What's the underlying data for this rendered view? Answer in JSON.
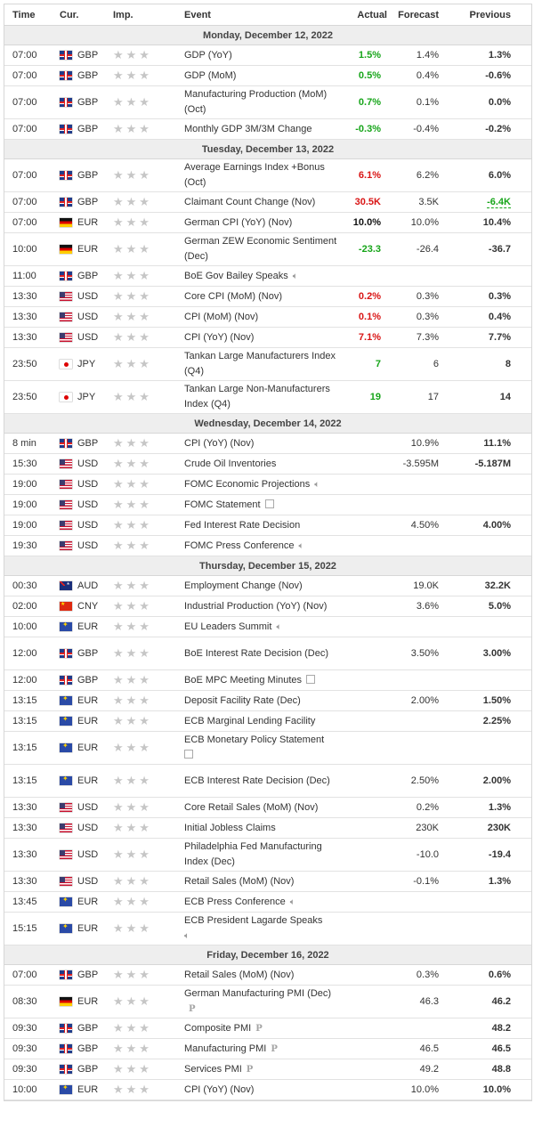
{
  "headers": {
    "time": "Time",
    "cur": "Cur.",
    "imp": "Imp.",
    "event": "Event",
    "actual": "Actual",
    "forecast": "Forecast",
    "previous": "Previous"
  },
  "days": [
    {
      "label": "Monday, December 12, 2022",
      "rows": [
        {
          "time": "07:00",
          "flag": "GBP",
          "cur": "GBP",
          "event": "GDP (YoY)",
          "actual": "1.5%",
          "actual_color": "green",
          "forecast": "1.4%",
          "previous": "1.3%"
        },
        {
          "time": "07:00",
          "flag": "GBP",
          "cur": "GBP",
          "event": "GDP (MoM)",
          "actual": "0.5%",
          "actual_color": "green",
          "forecast": "0.4%",
          "previous": "-0.6%"
        },
        {
          "time": "07:00",
          "flag": "GBP",
          "cur": "GBP",
          "event": "Manufacturing Production (MoM) (Oct)",
          "actual": "0.7%",
          "actual_color": "green",
          "forecast": "0.1%",
          "previous": "0.0%",
          "tall": true
        },
        {
          "time": "07:00",
          "flag": "GBP",
          "cur": "GBP",
          "event": "Monthly GDP 3M/3M Change",
          "actual": "-0.3%",
          "actual_color": "green",
          "forecast": "-0.4%",
          "previous": "-0.2%"
        }
      ]
    },
    {
      "label": "Tuesday, December 13, 2022",
      "rows": [
        {
          "time": "07:00",
          "flag": "GBP",
          "cur": "GBP",
          "event": "Average Earnings Index +Bonus (Oct)",
          "actual": "6.1%",
          "actual_color": "red",
          "forecast": "6.2%",
          "previous": "6.0%",
          "tall": true
        },
        {
          "time": "07:00",
          "flag": "GBP",
          "cur": "GBP",
          "event": "Claimant Count Change (Nov)",
          "actual": "30.5K",
          "actual_color": "red",
          "forecast": "3.5K",
          "previous": "-6.4K",
          "previous_color": "green",
          "previous_revised": true
        },
        {
          "time": "07:00",
          "flag": "DEU",
          "cur": "EUR",
          "event": "German CPI (YoY) (Nov)",
          "actual": "10.0%",
          "actual_color": "black",
          "forecast": "10.0%",
          "previous": "10.4%"
        },
        {
          "time": "10:00",
          "flag": "DEU",
          "cur": "EUR",
          "event": "German ZEW Economic Sentiment (Dec)",
          "actual": "-23.3",
          "actual_color": "green",
          "forecast": "-26.4",
          "previous": "-36.7",
          "tall": true
        },
        {
          "time": "11:00",
          "flag": "GBP",
          "cur": "GBP",
          "event": "BoE Gov Bailey Speaks",
          "icon": "speaker-icon",
          "actual": "",
          "forecast": "",
          "previous": ""
        },
        {
          "time": "13:30",
          "flag": "USD",
          "cur": "USD",
          "event": "Core CPI (MoM) (Nov)",
          "actual": "0.2%",
          "actual_color": "red",
          "forecast": "0.3%",
          "previous": "0.3%"
        },
        {
          "time": "13:30",
          "flag": "USD",
          "cur": "USD",
          "event": "CPI (MoM) (Nov)",
          "actual": "0.1%",
          "actual_color": "red",
          "forecast": "0.3%",
          "previous": "0.4%"
        },
        {
          "time": "13:30",
          "flag": "USD",
          "cur": "USD",
          "event": "CPI (YoY) (Nov)",
          "actual": "7.1%",
          "actual_color": "red",
          "forecast": "7.3%",
          "previous": "7.7%"
        },
        {
          "time": "23:50",
          "flag": "JPY",
          "cur": "JPY",
          "event": "Tankan Large Manufacturers Index (Q4)",
          "actual": "7",
          "actual_color": "green",
          "forecast": "6",
          "previous": "8",
          "tall": true
        },
        {
          "time": "23:50",
          "flag": "JPY",
          "cur": "JPY",
          "event": "Tankan Large Non-Manufacturers Index (Q4)",
          "actual": "19",
          "actual_color": "green",
          "forecast": "17",
          "previous": "14",
          "tall": true
        }
      ]
    },
    {
      "label": "Wednesday, December 14, 2022",
      "rows": [
        {
          "time": "8 min",
          "flag": "GBP",
          "cur": "GBP",
          "event": "CPI (YoY) (Nov)",
          "actual": "",
          "forecast": "10.9%",
          "previous": "11.1%"
        },
        {
          "time": "15:30",
          "flag": "USD",
          "cur": "USD",
          "event": "Crude Oil Inventories",
          "actual": "",
          "forecast": "-3.595M",
          "previous": "-5.187M"
        },
        {
          "time": "19:00",
          "flag": "USD",
          "cur": "USD",
          "event": "FOMC Economic Projections",
          "icon": "speaker-icon",
          "actual": "",
          "forecast": "",
          "previous": ""
        },
        {
          "time": "19:00",
          "flag": "USD",
          "cur": "USD",
          "event": "FOMC Statement",
          "icon": "document-icon",
          "actual": "",
          "forecast": "",
          "previous": ""
        },
        {
          "time": "19:00",
          "flag": "USD",
          "cur": "USD",
          "event": "Fed Interest Rate Decision",
          "actual": "",
          "forecast": "4.50%",
          "previous": "4.00%"
        },
        {
          "time": "19:30",
          "flag": "USD",
          "cur": "USD",
          "event": "FOMC Press Conference",
          "icon": "speaker-icon",
          "actual": "",
          "forecast": "",
          "previous": ""
        }
      ]
    },
    {
      "label": "Thursday, December 15, 2022",
      "rows": [
        {
          "time": "00:30",
          "flag": "AUD",
          "cur": "AUD",
          "event": "Employment Change (Nov)",
          "actual": "",
          "forecast": "19.0K",
          "previous": "32.2K"
        },
        {
          "time": "02:00",
          "flag": "CNY",
          "cur": "CNY",
          "event": "Industrial Production (YoY) (Nov)",
          "actual": "",
          "forecast": "3.6%",
          "previous": "5.0%"
        },
        {
          "time": "10:00",
          "flag": "EUR",
          "cur": "EUR",
          "event": "EU Leaders Summit",
          "icon": "speaker-icon",
          "actual": "",
          "forecast": "",
          "previous": ""
        },
        {
          "time": "12:00",
          "flag": "GBP",
          "cur": "GBP",
          "event": "BoE Interest Rate Decision (Dec)",
          "actual": "",
          "forecast": "3.50%",
          "previous": "3.00%",
          "tall": true
        },
        {
          "time": "12:00",
          "flag": "GBP",
          "cur": "GBP",
          "event": "BoE MPC Meeting Minutes",
          "icon": "document-icon",
          "actual": "",
          "forecast": "",
          "previous": ""
        },
        {
          "time": "13:15",
          "flag": "EUR",
          "cur": "EUR",
          "event": "Deposit Facility Rate (Dec)",
          "actual": "",
          "forecast": "2.00%",
          "previous": "1.50%"
        },
        {
          "time": "13:15",
          "flag": "EUR",
          "cur": "EUR",
          "event": "ECB Marginal Lending Facility",
          "actual": "",
          "forecast": "",
          "previous": "2.25%"
        },
        {
          "time": "13:15",
          "flag": "EUR",
          "cur": "EUR",
          "event": "ECB Monetary Policy Statement",
          "icon": "document-icon",
          "icon_newline": true,
          "actual": "",
          "forecast": "",
          "previous": "",
          "tall": true
        },
        {
          "time": "13:15",
          "flag": "EUR",
          "cur": "EUR",
          "event": "ECB Interest Rate Decision (Dec)",
          "actual": "",
          "forecast": "2.50%",
          "previous": "2.00%",
          "tall": true
        },
        {
          "time": "13:30",
          "flag": "USD",
          "cur": "USD",
          "event": "Core Retail Sales (MoM) (Nov)",
          "actual": "",
          "forecast": "0.2%",
          "previous": "1.3%"
        },
        {
          "time": "13:30",
          "flag": "USD",
          "cur": "USD",
          "event": "Initial Jobless Claims",
          "actual": "",
          "forecast": "230K",
          "previous": "230K"
        },
        {
          "time": "13:30",
          "flag": "USD",
          "cur": "USD",
          "event": "Philadelphia Fed Manufacturing Index (Dec)",
          "actual": "",
          "forecast": "-10.0",
          "previous": "-19.4",
          "tall": true
        },
        {
          "time": "13:30",
          "flag": "USD",
          "cur": "USD",
          "event": "Retail Sales (MoM) (Nov)",
          "actual": "",
          "forecast": "-0.1%",
          "previous": "1.3%"
        },
        {
          "time": "13:45",
          "flag": "EUR",
          "cur": "EUR",
          "event": "ECB Press Conference",
          "icon": "speaker-icon",
          "actual": "",
          "forecast": "",
          "previous": ""
        },
        {
          "time": "15:15",
          "flag": "EUR",
          "cur": "EUR",
          "event": "ECB President Lagarde Speaks",
          "icon": "speaker-icon",
          "icon_newline": true,
          "actual": "",
          "forecast": "",
          "previous": "",
          "tall": true
        }
      ]
    },
    {
      "label": "Friday, December 16, 2022",
      "rows": [
        {
          "time": "07:00",
          "flag": "GBP",
          "cur": "GBP",
          "event": "Retail Sales (MoM) (Nov)",
          "actual": "",
          "forecast": "0.3%",
          "previous": "0.6%"
        },
        {
          "time": "08:30",
          "flag": "DEU",
          "cur": "EUR",
          "event": "German Manufacturing PMI (Dec)",
          "icon": "preliminary-icon",
          "actual": "",
          "forecast": "46.3",
          "previous": "46.2",
          "tall": true
        },
        {
          "time": "09:30",
          "flag": "GBP",
          "cur": "GBP",
          "event": "Composite PMI",
          "icon": "preliminary-icon",
          "actual": "",
          "forecast": "",
          "previous": "48.2"
        },
        {
          "time": "09:30",
          "flag": "GBP",
          "cur": "GBP",
          "event": "Manufacturing PMI",
          "icon": "preliminary-icon",
          "actual": "",
          "forecast": "46.5",
          "previous": "46.5"
        },
        {
          "time": "09:30",
          "flag": "GBP",
          "cur": "GBP",
          "event": "Services PMI",
          "icon": "preliminary-icon",
          "actual": "",
          "forecast": "49.2",
          "previous": "48.8"
        },
        {
          "time": "10:00",
          "flag": "EUR",
          "cur": "EUR",
          "event": "CPI (YoY) (Nov)",
          "actual": "",
          "forecast": "10.0%",
          "previous": "10.0%"
        }
      ]
    }
  ]
}
